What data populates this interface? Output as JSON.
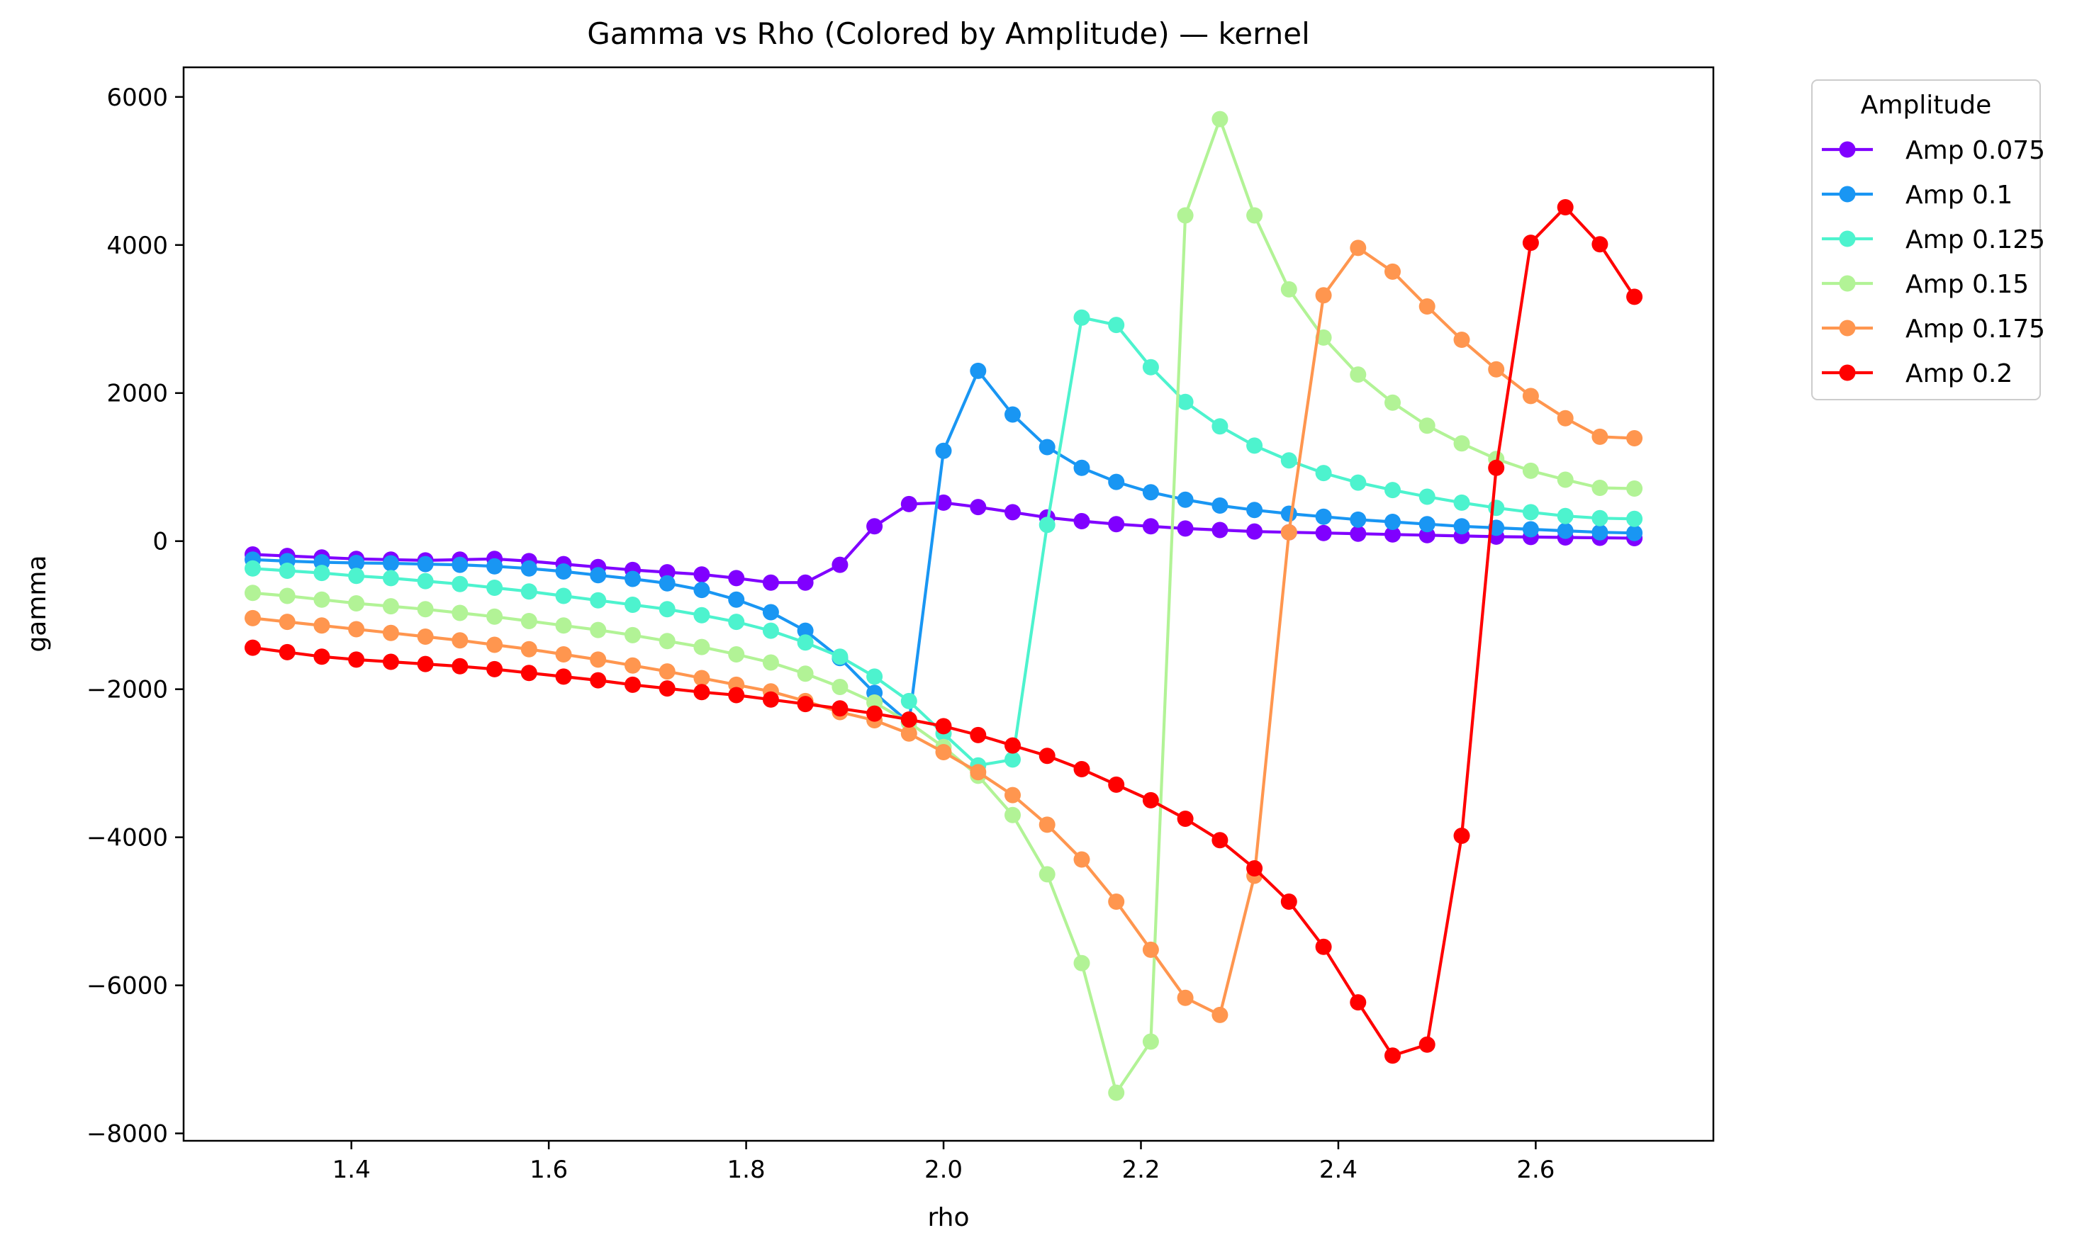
{
  "chart_data": {
    "type": "line",
    "title": "Gamma vs Rho (Colored by Amplitude) — kernel",
    "xlabel": "rho",
    "ylabel": "gamma",
    "xlim": [
      1.23,
      2.78
    ],
    "ylim": [
      -8100,
      6400
    ],
    "xticks": [
      1.4,
      1.6,
      1.8,
      2.0,
      2.2,
      2.4,
      2.6
    ],
    "xtick_labels": [
      "1.4",
      "1.6",
      "1.8",
      "2.0",
      "2.2",
      "2.4",
      "2.6"
    ],
    "yticks": [
      -8000,
      -6000,
      -4000,
      -2000,
      0,
      2000,
      4000,
      6000
    ],
    "ytick_labels": [
      "−8000",
      "−6000",
      "−4000",
      "−2000",
      "0",
      "2000",
      "4000",
      "6000"
    ],
    "grid": false,
    "legend": {
      "title": "Amplitude",
      "placement": "outside upper right"
    },
    "x": [
      1.3,
      1.335,
      1.37,
      1.405,
      1.44,
      1.475,
      1.51,
      1.545,
      1.58,
      1.615,
      1.65,
      1.685,
      1.72,
      1.755,
      1.79,
      1.825,
      1.86,
      1.895,
      1.93,
      1.965,
      2.0,
      2.035,
      2.07,
      2.105,
      2.14,
      2.175,
      2.21,
      2.245,
      2.28,
      2.315,
      2.35,
      2.385,
      2.42,
      2.455,
      2.49,
      2.525,
      2.56,
      2.595,
      2.63,
      2.665,
      2.7
    ],
    "series": [
      {
        "name": "Amp 0.075",
        "color": "#8000ff",
        "values": [
          -180,
          -200,
          -220,
          -240,
          -250,
          -260,
          -250,
          -240,
          -270,
          -310,
          -350,
          -390,
          -420,
          -450,
          -500,
          -560,
          -560,
          -320,
          200,
          500,
          520,
          460,
          390,
          320,
          270,
          230,
          200,
          170,
          150,
          130,
          120,
          110,
          100,
          90,
          80,
          70,
          60,
          55,
          50,
          45,
          40
        ]
      },
      {
        "name": "Amp 0.1",
        "color": "#1996f3",
        "values": [
          -250,
          -270,
          -285,
          -295,
          -300,
          -310,
          -320,
          -340,
          -370,
          -410,
          -460,
          -510,
          -570,
          -660,
          -790,
          -960,
          -1210,
          -1580,
          -2050,
          -2450,
          1220,
          2300,
          1710,
          1270,
          990,
          800,
          660,
          560,
          480,
          420,
          370,
          330,
          290,
          260,
          230,
          200,
          180,
          160,
          140,
          120,
          110
        ]
      },
      {
        "name": "Amp 0.125",
        "color": "#4df3ce",
        "values": [
          -370,
          -400,
          -430,
          -470,
          -500,
          -540,
          -580,
          -630,
          -680,
          -740,
          -800,
          -860,
          -920,
          -1000,
          -1090,
          -1210,
          -1370,
          -1560,
          -1830,
          -2160,
          -2600,
          -3030,
          -2950,
          220,
          3020,
          2920,
          2350,
          1880,
          1550,
          1290,
          1090,
          920,
          790,
          690,
          600,
          520,
          450,
          390,
          340,
          310,
          300
        ]
      },
      {
        "name": "Amp 0.15",
        "color": "#b2f396",
        "values": [
          -700,
          -740,
          -790,
          -840,
          -880,
          -920,
          -970,
          -1020,
          -1080,
          -1140,
          -1200,
          -1270,
          -1350,
          -1430,
          -1530,
          -1640,
          -1790,
          -1970,
          -2180,
          -2450,
          -2780,
          -3170,
          -3700,
          -4500,
          -5700,
          -7450,
          -6760,
          4400,
          5700,
          4400,
          3400,
          2750,
          2250,
          1870,
          1560,
          1320,
          1110,
          950,
          830,
          720,
          710
        ]
      },
      {
        "name": "Amp 0.175",
        "color": "#ff964f",
        "values": [
          -1040,
          -1090,
          -1140,
          -1190,
          -1240,
          -1290,
          -1340,
          -1400,
          -1460,
          -1530,
          -1600,
          -1680,
          -1760,
          -1850,
          -1940,
          -2030,
          -2160,
          -2310,
          -2420,
          -2600,
          -2850,
          -3120,
          -3430,
          -3830,
          -4300,
          -4870,
          -5520,
          -6170,
          -6400,
          -4520,
          120,
          3320,
          3960,
          3640,
          3170,
          2720,
          2320,
          1960,
          1660,
          1410,
          1390
        ]
      },
      {
        "name": "Amp 0.2",
        "color": "#ff0000",
        "values": [
          -1440,
          -1500,
          -1560,
          -1600,
          -1630,
          -1660,
          -1690,
          -1730,
          -1780,
          -1830,
          -1880,
          -1940,
          -1990,
          -2040,
          -2080,
          -2140,
          -2200,
          -2260,
          -2330,
          -2410,
          -2500,
          -2620,
          -2760,
          -2900,
          -3080,
          -3290,
          -3500,
          -3750,
          -4040,
          -4420,
          -4870,
          -5480,
          -6230,
          -6950,
          -6800,
          -3980,
          990,
          4030,
          4510,
          4010,
          3300
        ]
      }
    ]
  }
}
